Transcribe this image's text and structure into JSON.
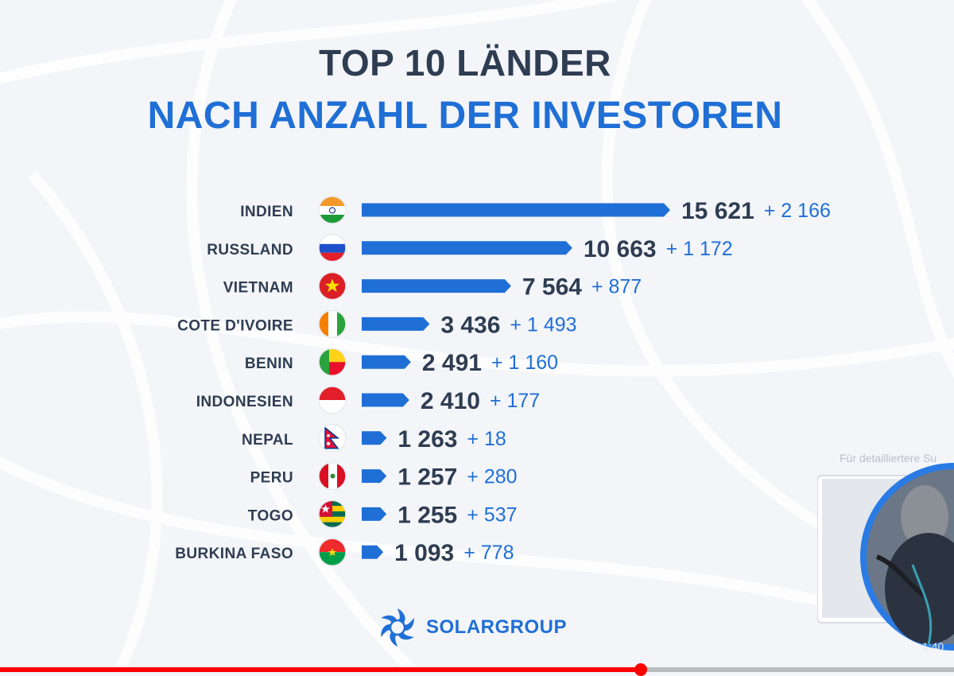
{
  "title_line1": "TOP 10 LÄNDER",
  "title_line2": "NACH ANZAHL DER INVESTOREN",
  "brand": {
    "name": "SOLARGROUP",
    "color": "#1f6fd6"
  },
  "colors": {
    "bar": "#1f6fd6",
    "value_text": "#2f3d52",
    "delta_text": "#1f6fd6",
    "background": "#f3f5f9"
  },
  "video": {
    "caption": "Für detailliertere Su",
    "time": "1:40",
    "progress": 0.672
  },
  "chart_data": {
    "type": "bar",
    "orientation": "horizontal",
    "categories": [
      "INDIEN",
      "RUSSLAND",
      "VIETNAM",
      "COTE D'IVOIRE",
      "BENIN",
      "INDONESIEN",
      "NEPAL",
      "PERU",
      "TOGO",
      "BURKINA FASO"
    ],
    "values": [
      15621,
      10663,
      7564,
      3436,
      2491,
      2410,
      1263,
      1257,
      1255,
      1093
    ],
    "value_labels": [
      "15 621",
      "10 663",
      "7 564",
      "3 436",
      "2 491",
      "2 410",
      "1 263",
      "1 257",
      "1 255",
      "1 093"
    ],
    "delta_labels": [
      "+ 2 166",
      "+ 1 172",
      "+ 877",
      "+ 1 493",
      "+ 1 160",
      "+ 177",
      "+ 18",
      "+ 280",
      "+ 537",
      "+ 778"
    ],
    "flag_icons": [
      "india-flag-icon",
      "russia-flag-icon",
      "vietnam-flag-icon",
      "cote-divoire-flag-icon",
      "benin-flag-icon",
      "indonesia-flag-icon",
      "nepal-flag-icon",
      "peru-flag-icon",
      "togo-flag-icon",
      "burkina-faso-flag-icon"
    ],
    "title": "TOP 10 LÄNDER NACH ANZAHL DER INVESTOREN",
    "xlabel": "",
    "ylabel": "",
    "grid": false,
    "legend": "none"
  }
}
